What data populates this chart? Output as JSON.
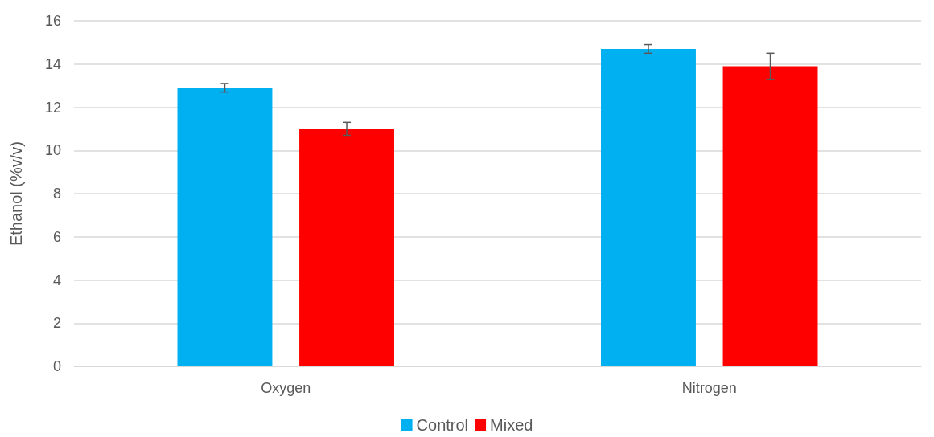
{
  "chart_data": {
    "type": "bar",
    "ylabel": "Ethanol (%v/v)",
    "categories": [
      "Oxygen",
      "Nitrogen"
    ],
    "series": [
      {
        "name": "Control",
        "color": "#00b0f0",
        "values": [
          12.9,
          14.7
        ],
        "errors": [
          0.2,
          0.2
        ]
      },
      {
        "name": "Mixed",
        "color": "#ff0000",
        "values": [
          11.0,
          13.9
        ],
        "errors": [
          0.3,
          0.6
        ]
      }
    ],
    "ylim": [
      0,
      16
    ],
    "yticks": [
      0,
      2,
      4,
      6,
      8,
      10,
      12,
      14,
      16
    ],
    "grid": "y",
    "legend": "bottom"
  }
}
